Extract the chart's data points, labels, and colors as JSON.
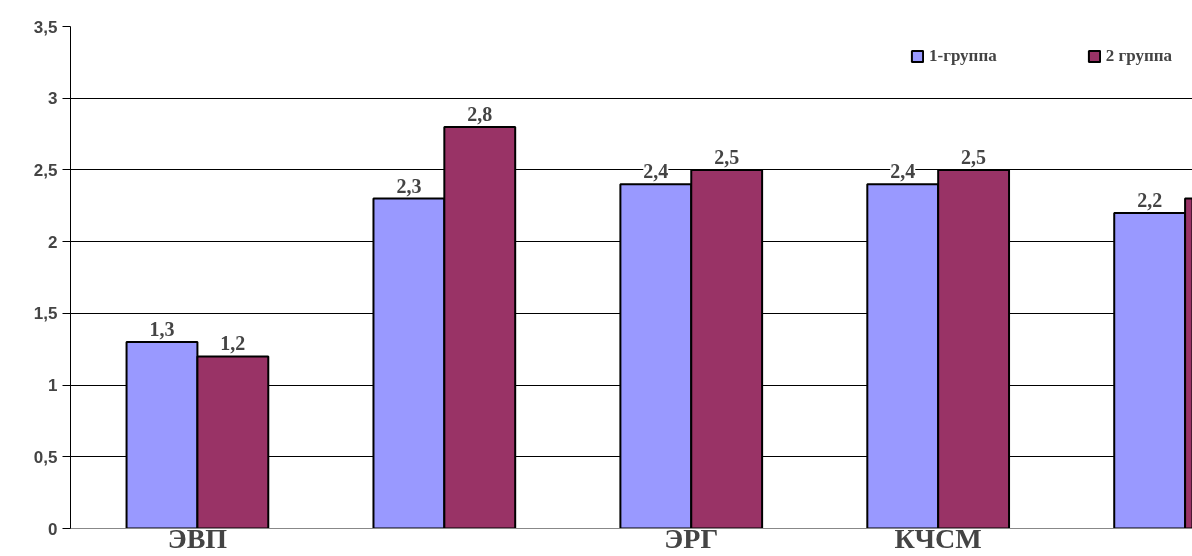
{
  "chart_data": {
    "type": "bar",
    "categories": [
      "ЭВП",
      null,
      "ЭРГ",
      "КЧСМ",
      null
    ],
    "series": [
      {
        "name": "1-группа",
        "color": "#9999ff",
        "values": [
          1.3,
          2.3,
          2.4,
          2.4,
          2.2
        ],
        "value_labels": [
          "1,3",
          "2,3",
          "2,4",
          "2,4",
          "2,2"
        ]
      },
      {
        "name": "2 группа",
        "color": "#993366",
        "values": [
          1.2,
          2.8,
          2.5,
          2.5,
          2.3
        ],
        "value_labels": [
          "1,2",
          "2,8",
          "2,5",
          "2,5",
          null
        ]
      }
    ],
    "ylim": [
      0,
      3.5
    ],
    "yticks": [
      0,
      {
        "value": 0.5,
        "label": "0,5"
      },
      1,
      {
        "value": 1.5,
        "label": "1,5"
      },
      2,
      {
        "value": 2.5,
        "label": "2,5"
      },
      3,
      {
        "value": 3.5,
        "label": "3,5"
      }
    ],
    "grid": "y",
    "legend": "top right"
  }
}
